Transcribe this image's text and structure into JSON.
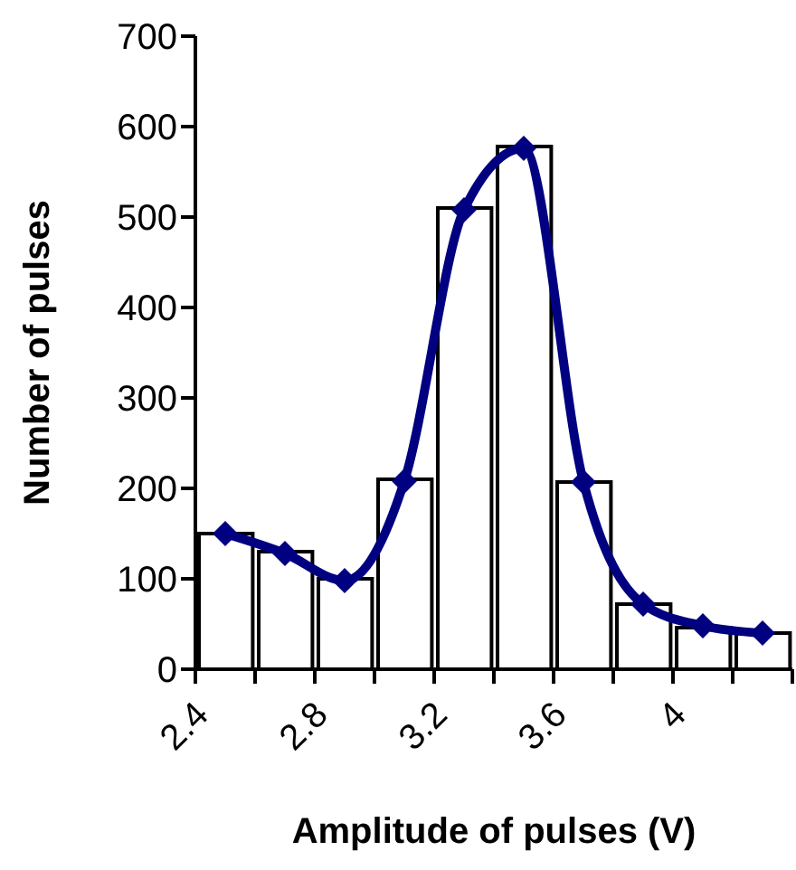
{
  "chart_data": {
    "type": "histogram",
    "xlabel": "Amplitude of pulses (V)",
    "ylabel": "Number of pulses",
    "bins": [
      2.4,
      2.6,
      2.8,
      3.0,
      3.2,
      3.4,
      3.6,
      3.8,
      4.0,
      4.2,
      4.4
    ],
    "values": [
      150,
      130,
      100,
      210,
      510,
      578,
      207,
      72,
      46,
      40
    ],
    "color": "#ffffff",
    "series": [
      {
        "type": "line",
        "color": "#000080",
        "x": [
          2.5,
          2.7,
          2.9,
          3.1,
          3.3,
          3.5,
          3.7,
          3.9,
          4.1,
          4.3
        ],
        "values": [
          150,
          128,
          98,
          208,
          508,
          576,
          207,
          72,
          48,
          40
        ]
      }
    ],
    "marker": "diamond",
    "line_style": "solid",
    "xlim": [
      2.4,
      4.4
    ],
    "xticks": [
      2.4,
      {
        "value": 2.6,
        "label": null
      },
      2.8,
      {
        "value": 3.0,
        "label": null
      },
      3.2,
      {
        "value": 3.4,
        "label": null
      },
      3.6,
      {
        "value": 3.8,
        "label": null
      },
      4,
      {
        "value": 4.2,
        "label": null
      },
      {
        "value": 4.4,
        "label": null
      }
    ],
    "ylim": [
      0,
      700
    ],
    "yticks": [
      0,
      100,
      200,
      300,
      400,
      500,
      600,
      700
    ],
    "grid": false,
    "legend": false
  }
}
